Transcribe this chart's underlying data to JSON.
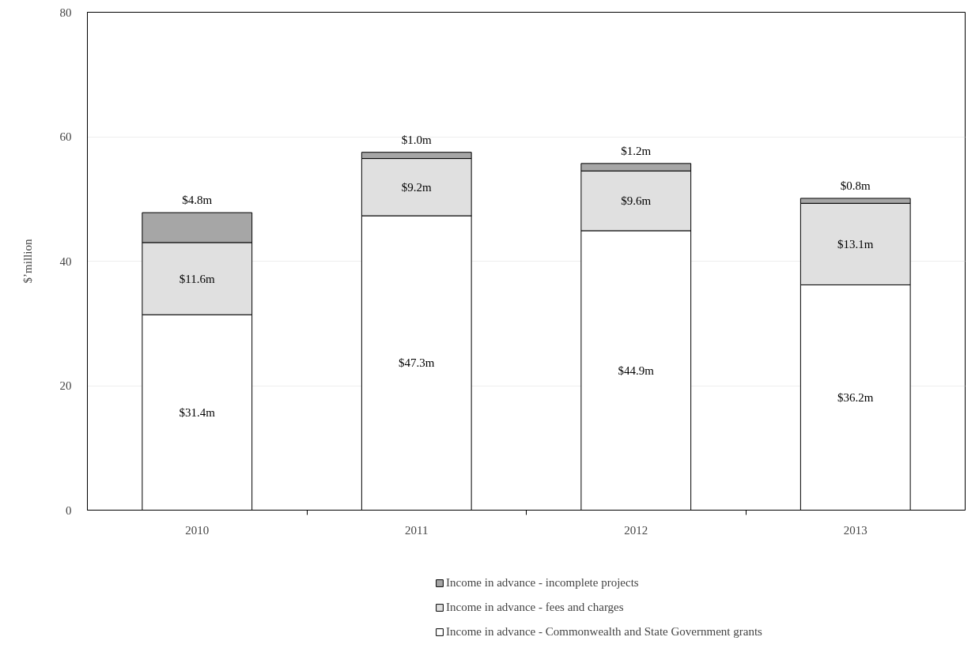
{
  "chart_data": {
    "type": "bar",
    "stacked": true,
    "ylabel": "$’million",
    "categories": [
      "2010",
      "2011",
      "2012",
      "2013"
    ],
    "series": [
      {
        "name": "Income in advance - Commonwealth and State Government grants",
        "color": "#ffffff",
        "values": [
          31.4,
          47.3,
          44.9,
          36.2
        ],
        "value_labels": [
          "$31.4m",
          "$47.3m",
          "$44.9m",
          "$36.2m"
        ]
      },
      {
        "name": "Income in advance - fees and charges",
        "color": "#e0e0e0",
        "values": [
          11.6,
          9.2,
          9.6,
          13.1
        ],
        "value_labels": [
          "$11.6m",
          "$9.2m",
          "$9.6m",
          "$13.1m"
        ]
      },
      {
        "name": "Income in advance - incomplete projects",
        "color": "#a6a6a6",
        "values": [
          4.8,
          1.0,
          1.2,
          0.8
        ],
        "value_labels": [
          "$4.8m",
          "$1.0m",
          "$1.2m",
          "$0.8m"
        ]
      }
    ],
    "ylim": [
      0,
      80
    ],
    "yticks": [
      0,
      20,
      40,
      60,
      80
    ],
    "grid": "y",
    "legend": "bottom"
  }
}
